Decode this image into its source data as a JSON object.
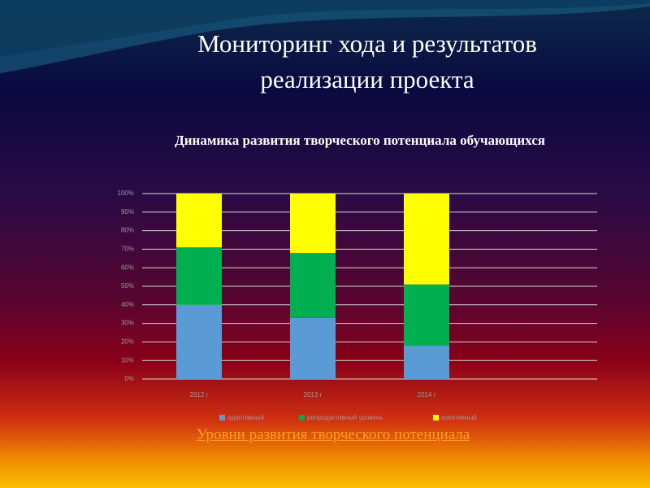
{
  "title": [
    "Мониторинг хода и результатов",
    "реализации проекта"
  ],
  "link": "Уровни развития творческого потенциала",
  "chart_data": {
    "type": "stacked-bar",
    "title": "Динамика развития творческого потенциала обучающихся",
    "categories": [
      "2012 г",
      "2013 г",
      "2014 г"
    ],
    "series": [
      {
        "name": "адаптивный",
        "color": "#5b9bd5",
        "values": [
          40,
          33,
          18
        ]
      },
      {
        "name": "репродуктивный уровень",
        "color": "#00b050",
        "values": [
          31,
          35,
          33
        ]
      },
      {
        "name": "креативный",
        "color": "#ffff00",
        "values": [
          29,
          32,
          49
        ]
      }
    ],
    "ylim": [
      0,
      100
    ],
    "yticks": [
      {
        "value": 0,
        "label": "0%"
      },
      {
        "value": 10,
        "label": "10%"
      },
      {
        "value": 20,
        "label": "20%"
      },
      {
        "value": 30,
        "label": "30%"
      },
      {
        "value": 40,
        "label": "40%"
      },
      {
        "value": 50,
        "label": "50%"
      },
      {
        "value": 60,
        "label": "60%"
      },
      {
        "value": 70,
        "label": "70%"
      },
      {
        "value": 80,
        "label": "80%"
      },
      {
        "value": 90,
        "label": "90%"
      },
      {
        "value": 100,
        "label": "100%"
      }
    ],
    "grid": true,
    "legend": "bottom"
  }
}
